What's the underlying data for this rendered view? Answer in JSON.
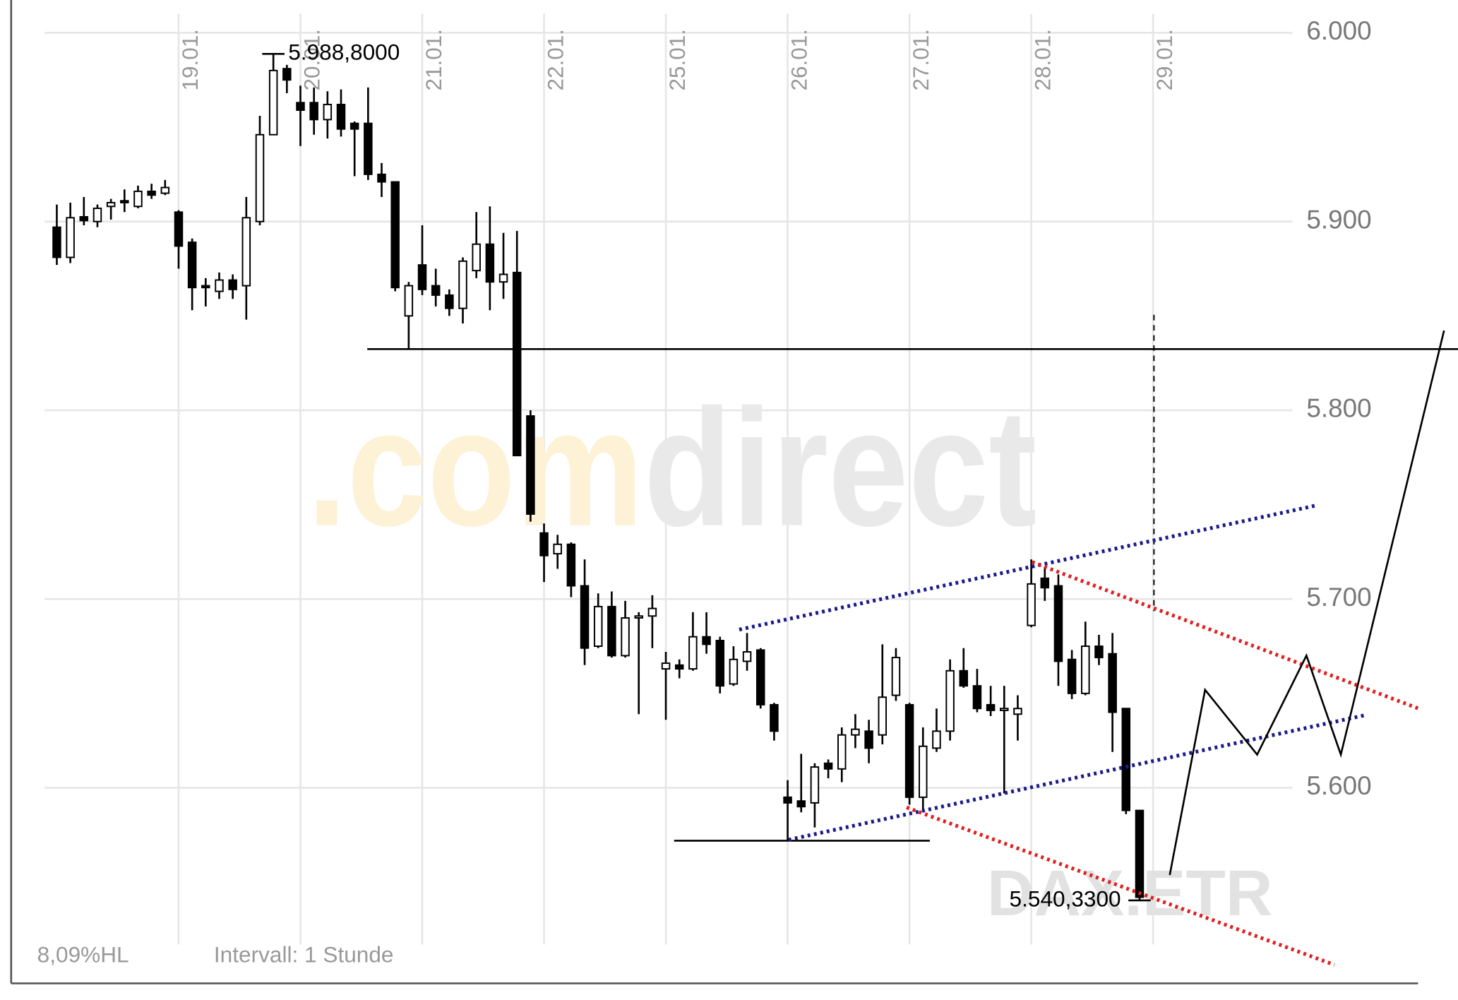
{
  "chart_data": {
    "type": "candlestick",
    "watermark": [
      ".com",
      "direct"
    ],
    "symbol": "DAX.ETR",
    "footer_left": "8,09%HL",
    "footer_interval": "Intervall: 1 Stunde",
    "up_color": "#ffffff",
    "down_color": "#000000",
    "grid": true,
    "x": [
      0,
      1,
      2,
      3,
      4,
      5,
      6,
      7,
      8,
      9,
      10,
      11,
      12,
      13,
      14,
      15,
      16,
      17,
      18,
      19,
      20,
      21,
      22,
      23,
      24,
      25,
      26,
      27,
      28,
      29,
      30,
      31,
      32,
      33,
      34,
      35,
      36,
      37,
      38,
      39,
      40,
      41,
      42,
      43,
      44,
      45,
      46,
      47,
      48,
      49,
      50,
      51,
      52,
      53,
      54,
      55,
      56,
      57,
      58,
      59,
      60,
      61,
      62,
      63,
      64,
      65,
      66,
      67,
      68,
      69,
      70,
      71,
      72,
      73,
      74,
      75,
      76,
      77,
      78,
      79,
      80
    ],
    "open": [
      5897,
      5881,
      5902.5,
      5900,
      5908,
      5911,
      5908,
      5916,
      5915,
      5905,
      5889,
      5866,
      5863,
      5869,
      5866,
      5900,
      5946,
      5981,
      5963,
      5963,
      5954,
      5962,
      5952,
      5952,
      5925,
      5921,
      5850,
      5877,
      5866,
      5861,
      5854,
      5874,
      5888,
      5868,
      5873,
      5797,
      5735,
      5724,
      5729,
      5707,
      5675,
      5696,
      5670,
      5690,
      5691,
      5663,
      5665,
      5663,
      5680,
      5678,
      5655,
      5667,
      5673,
      5644,
      5595,
      5593,
      5592,
      5613,
      5610,
      5628,
      5630,
      5628,
      5649,
      5644,
      5595,
      5621,
      5630,
      5662,
      5654,
      5644,
      5641,
      5639,
      5686,
      5711,
      5707,
      5668,
      5650,
      5675,
      5671,
      5642,
      5588
    ],
    "high": [
      5909,
      5910,
      5913,
      5909,
      5912,
      5917,
      5919,
      5920,
      5922,
      5906,
      5891,
      5870,
      5873,
      5872,
      5913,
      5956,
      5988.8,
      5983,
      5972,
      5971,
      5969,
      5970,
      5953,
      5971,
      5931,
      5921,
      5868,
      5898,
      5875,
      5864,
      5881,
      5905,
      5908,
      5894,
      5895,
      5800,
      5740,
      5734,
      5730,
      5721,
      5703,
      5704,
      5699,
      5693,
      5702,
      5672,
      5668,
      5693,
      5693,
      5680,
      5675,
      5682,
      5674,
      5645,
      5604,
      5618,
      5613,
      5615,
      5632,
      5639,
      5636,
      5676,
      5674,
      5645,
      5632,
      5642,
      5668,
      5674,
      5663,
      5654,
      5654,
      5649,
      5721,
      5717,
      5713,
      5673,
      5688,
      5681,
      5682,
      5642,
      5588
    ],
    "low": [
      5877,
      5878,
      5898,
      5897,
      5901,
      5905,
      5907,
      5912,
      5914,
      5875,
      5853,
      5855,
      5859,
      5859,
      5848,
      5898,
      5946,
      5968,
      5940,
      5946,
      5944,
      5945,
      5924,
      5922,
      5913,
      5863,
      5832,
      5861,
      5855,
      5850,
      5846,
      5870,
      5853,
      5859,
      5776,
      5741,
      5709,
      5716,
      5701,
      5665,
      5674,
      5669,
      5669,
      5639,
      5674,
      5636,
      5658,
      5662,
      5671,
      5650,
      5654,
      5662,
      5642,
      5625,
      5572,
      5587,
      5579,
      5605,
      5603,
      5621,
      5613,
      5623,
      5646,
      5591,
      5588,
      5619,
      5625,
      5653,
      5640,
      5638,
      5597,
      5625,
      5685,
      5699,
      5654,
      5647,
      5649,
      5665,
      5619,
      5586,
      5540.33
    ],
    "close": [
      5881,
      5902,
      5900.5,
      5907,
      5910,
      5910,
      5916,
      5914,
      5918,
      5887,
      5865,
      5865,
      5869,
      5864,
      5902,
      5946,
      5980,
      5975,
      5959,
      5954,
      5962,
      5949,
      5949,
      5925,
      5921,
      5865,
      5866,
      5864,
      5861,
      5854,
      5879,
      5888,
      5868,
      5872,
      5776,
      5745,
      5723,
      5729,
      5707,
      5674,
      5696,
      5670,
      5690,
      5691,
      5695,
      5666,
      5663,
      5680,
      5676,
      5654,
      5668,
      5672,
      5644,
      5630,
      5592,
      5590,
      5611,
      5610,
      5628,
      5631,
      5621,
      5648,
      5669,
      5595,
      5622,
      5630,
      5662,
      5654,
      5642,
      5641,
      5642,
      5642,
      5708,
      5706,
      5667,
      5650,
      5675,
      5669,
      5640,
      5588,
      5542
    ],
    "xlim": [
      -0.9,
      91.3
    ],
    "xticks": [
      {
        "value": 9,
        "label": "19.01."
      },
      {
        "value": 18,
        "label": "20.01."
      },
      {
        "value": 27,
        "label": "21.01."
      },
      {
        "value": 36,
        "label": "22.01."
      },
      {
        "value": 45,
        "label": "25.01."
      },
      {
        "value": 54,
        "label": "26.01."
      },
      {
        "value": 63,
        "label": "27.01."
      },
      {
        "value": 72,
        "label": "28.01."
      },
      {
        "value": 81,
        "label": "29.01."
      }
    ],
    "ylim": [
      5517,
      6010
    ],
    "yticks": [
      {
        "value": 5600,
        "label": "5.600"
      },
      {
        "value": 5700,
        "label": "5.700"
      },
      {
        "value": 5800,
        "label": "5.800"
      },
      {
        "value": 5900,
        "label": "5.900"
      },
      {
        "value": 6000,
        "label": "6.000"
      }
    ],
    "annotations": [
      {
        "x": 16,
        "value": 5988.8,
        "label": "5.988,8000"
      },
      {
        "x": 80,
        "value": 5540.33,
        "label": "5.540,3300"
      }
    ]
  }
}
